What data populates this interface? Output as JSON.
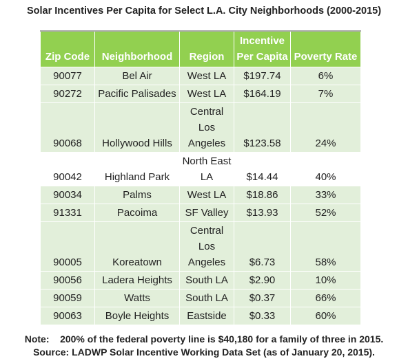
{
  "title": "Solar Incentives Per Capita for Select L.A. City Neighborhoods (2000-2015)",
  "table": {
    "headers": [
      "Zip Code",
      "Neighborhood",
      "Region",
      "Incentive Per Capita",
      "Poverty Rate"
    ],
    "rows": [
      [
        "90077",
        "Bel Air",
        "West LA",
        "$197.74",
        "6%"
      ],
      [
        "90272",
        "Pacific Palisades",
        "West LA",
        "$164.19",
        "7%"
      ],
      [
        "90068",
        "Hollywood Hills",
        "Central Los Angeles",
        "$123.58",
        "24%"
      ],
      [
        "90042",
        "Highland Park",
        "North East LA",
        "$14.44",
        "40%"
      ],
      [
        "90034",
        "Palms",
        "West LA",
        "$18.86",
        "33%"
      ],
      [
        "91331",
        "Pacoima",
        "SF Valley",
        "$13.93",
        "52%"
      ],
      [
        "90005",
        "Koreatown",
        "Central Los Angeles",
        "$6.73",
        "58%"
      ],
      [
        "90056",
        "Ladera Heights",
        "South LA",
        "$2.90",
        "10%"
      ],
      [
        "90059",
        "Watts",
        "South LA",
        "$0.37",
        "66%"
      ],
      [
        "90063",
        "Boyle Heights",
        "Eastside",
        "$0.33",
        "60%"
      ]
    ]
  },
  "notes": [
    "Note:    200% of the federal poverty line is $40,180 for a family of three in 2015.",
    "Source: LADWP Solar Incentive Working Data Set (as of January 20, 2015)."
  ]
}
